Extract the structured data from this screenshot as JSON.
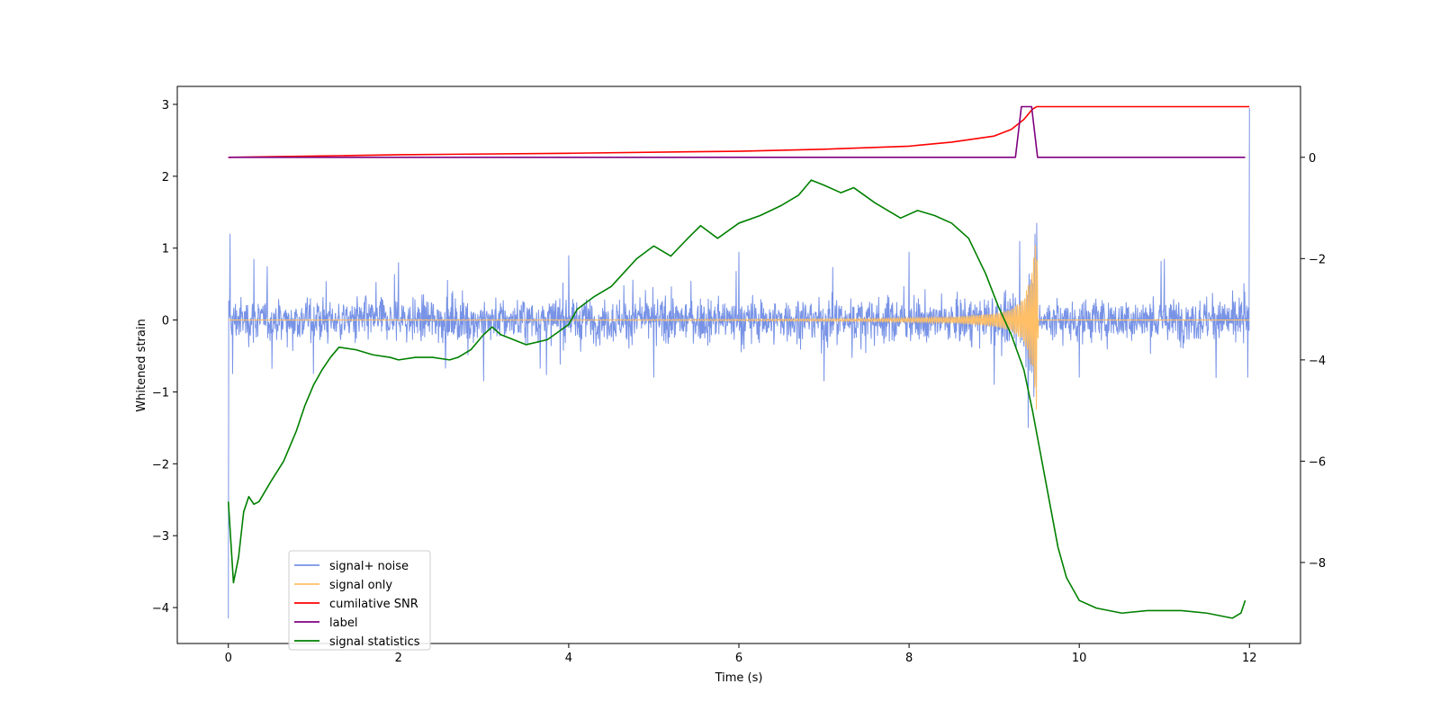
{
  "chart_data": {
    "type": "line",
    "title": "",
    "xlabel": "Time (s)",
    "ylabel": "Whitened strain",
    "y2label": "",
    "xlim": [
      -0.6,
      12.6
    ],
    "ylim": [
      -4.5,
      3.25
    ],
    "y2lim": [
      -9.6,
      1.4
    ],
    "xticks": [
      0,
      2,
      4,
      6,
      8,
      10,
      12
    ],
    "yticks": [
      -4,
      -3,
      -2,
      -1,
      0,
      1,
      2,
      3
    ],
    "y2ticks": [
      -8,
      -6,
      -4,
      -2,
      0
    ],
    "grid": false,
    "legend_position": "lower-left",
    "series": [
      {
        "name": "signal+ noise",
        "axis": "left",
        "color": "#7893e6",
        "description": "noise band roughly between -0.75 and 0.75 with spikes to about ±1.2; large spikes near t=0 (min -4.15) and t=12 (max 2.95)",
        "x": [
          0,
          0.02,
          0.05,
          0.3,
          1.0,
          2.0,
          3.0,
          4.0,
          5.0,
          6.0,
          7.0,
          8.0,
          9.0,
          9.3,
          9.4,
          9.5,
          10.0,
          11.0,
          11.98,
          12.0
        ],
        "y": [
          -4.15,
          1.2,
          -0.75,
          0.85,
          -0.75,
          0.8,
          -0.85,
          0.9,
          -0.8,
          0.95,
          -0.85,
          0.95,
          -0.9,
          1.1,
          -1.5,
          1.35,
          -0.8,
          0.85,
          -0.8,
          2.95
        ]
      },
      {
        "name": "signal only",
        "axis": "left",
        "color": "#ffbf66",
        "description": "chirp signal, near-zero until about t=6 then growing, peaking at about ±1.3 near t=9.5, then zero",
        "envelope_x": [
          0,
          4.0,
          6.0,
          7.5,
          8.5,
          9.0,
          9.2,
          9.35,
          9.45,
          9.5,
          9.52,
          12.0
        ],
        "envelope_y": [
          0.0,
          0.005,
          0.01,
          0.02,
          0.04,
          0.09,
          0.15,
          0.3,
          0.7,
          1.3,
          0.0,
          0.0
        ]
      },
      {
        "name": "cumilative SNR",
        "axis": "right",
        "color": "#ff0000",
        "x": [
          0,
          2,
          4,
          6,
          7,
          8,
          8.5,
          9.0,
          9.2,
          9.35,
          9.45,
          9.5,
          12.0
        ],
        "y": [
          0.0,
          0.05,
          0.08,
          0.12,
          0.16,
          0.22,
          0.3,
          0.42,
          0.55,
          0.75,
          0.95,
          1.0,
          1.0
        ]
      },
      {
        "name": "label",
        "axis": "right",
        "color": "#800080",
        "x": [
          0,
          9.25,
          9.32,
          9.44,
          9.51,
          11.95
        ],
        "y": [
          0,
          0,
          1,
          1,
          0,
          0
        ]
      },
      {
        "name": "signal statistics",
        "axis": "right",
        "color": "#008000",
        "x": [
          0,
          0.06,
          0.12,
          0.18,
          0.24,
          0.3,
          0.36,
          0.5,
          0.65,
          0.8,
          0.9,
          1.0,
          1.1,
          1.2,
          1.3,
          1.5,
          1.7,
          1.9,
          2.0,
          2.2,
          2.4,
          2.6,
          2.7,
          2.85,
          3.0,
          3.1,
          3.2,
          3.35,
          3.5,
          3.75,
          4.0,
          4.1,
          4.3,
          4.5,
          4.8,
          5.0,
          5.2,
          5.4,
          5.55,
          5.75,
          6.0,
          6.25,
          6.5,
          6.7,
          6.85,
          7.0,
          7.2,
          7.35,
          7.6,
          7.9,
          8.1,
          8.3,
          8.5,
          8.7,
          8.9,
          9.05,
          9.2,
          9.35,
          9.45,
          9.55,
          9.65,
          9.75,
          9.85,
          10.0,
          10.2,
          10.5,
          10.8,
          11.2,
          11.5,
          11.8,
          11.9,
          11.95
        ],
        "y": [
          -6.8,
          -8.4,
          -7.9,
          -7.0,
          -6.7,
          -6.85,
          -6.8,
          -6.4,
          -6.0,
          -5.4,
          -4.9,
          -4.5,
          -4.2,
          -3.95,
          -3.75,
          -3.8,
          -3.9,
          -3.95,
          -4.0,
          -3.95,
          -3.95,
          -4.0,
          -3.95,
          -3.8,
          -3.5,
          -3.35,
          -3.5,
          -3.6,
          -3.7,
          -3.6,
          -3.3,
          -3.0,
          -2.75,
          -2.55,
          -2.0,
          -1.75,
          -1.95,
          -1.6,
          -1.35,
          -1.6,
          -1.3,
          -1.15,
          -0.95,
          -0.75,
          -0.45,
          -0.55,
          -0.7,
          -0.6,
          -0.9,
          -1.2,
          -1.05,
          -1.15,
          -1.3,
          -1.6,
          -2.3,
          -2.95,
          -3.5,
          -4.2,
          -5.0,
          -5.9,
          -6.8,
          -7.7,
          -8.3,
          -8.75,
          -8.9,
          -9.0,
          -8.95,
          -8.95,
          -9.0,
          -9.1,
          -9.0,
          -8.75
        ]
      }
    ]
  }
}
